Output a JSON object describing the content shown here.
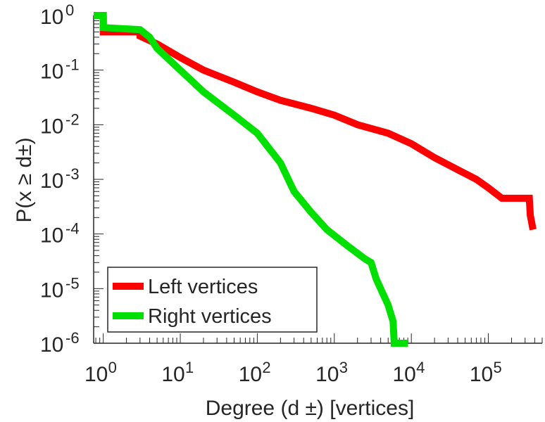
{
  "chart_data": {
    "type": "line",
    "title": "",
    "xlabel": "Degree (d ±) [vertices]",
    "ylabel": "P(x ≥ d±)",
    "xscale": "log",
    "yscale": "log",
    "xlim": [
      0.75,
      500000
    ],
    "ylim": [
      1e-06,
      1
    ],
    "grid": false,
    "legend_position": "bottom-left",
    "x_tick_labels": [
      {
        "base": "10",
        "exp": "0"
      },
      {
        "base": "10",
        "exp": "1"
      },
      {
        "base": "10",
        "exp": "2"
      },
      {
        "base": "10",
        "exp": "3"
      },
      {
        "base": "10",
        "exp": "4"
      },
      {
        "base": "10",
        "exp": "5"
      }
    ],
    "y_tick_labels": [
      {
        "base": "10",
        "exp": "0"
      },
      {
        "base": "10",
        "exp": "-1"
      },
      {
        "base": "10",
        "exp": "-2"
      },
      {
        "base": "10",
        "exp": "-3"
      },
      {
        "base": "10",
        "exp": "-4"
      },
      {
        "base": "10",
        "exp": "-5"
      },
      {
        "base": "10",
        "exp": "-6"
      }
    ],
    "series": [
      {
        "name": "Left vertices",
        "color": "#ff0000",
        "points": [
          [
            1,
            1
          ],
          [
            1,
            0.5
          ],
          [
            3,
            0.5
          ],
          [
            3,
            0.42
          ],
          [
            5,
            0.3
          ],
          [
            10,
            0.17
          ],
          [
            20,
            0.1
          ],
          [
            50,
            0.06
          ],
          [
            100,
            0.04
          ],
          [
            200,
            0.028
          ],
          [
            500,
            0.02
          ],
          [
            1000,
            0.015
          ],
          [
            2000,
            0.01
          ],
          [
            5000,
            0.007
          ],
          [
            10000,
            0.0045
          ],
          [
            20000,
            0.0025
          ],
          [
            40000,
            0.0015
          ],
          [
            70000,
            0.001
          ],
          [
            100000,
            0.0007
          ],
          [
            150000,
            0.00045
          ],
          [
            340000,
            0.00045
          ],
          [
            350000,
            0.00022
          ],
          [
            380000,
            0.00012
          ]
        ]
      },
      {
        "name": "Right vertices",
        "color": "#00e000",
        "points": [
          [
            0.75,
            1
          ],
          [
            1,
            1
          ],
          [
            1,
            0.6
          ],
          [
            3,
            0.55
          ],
          [
            4,
            0.4
          ],
          [
            5,
            0.25
          ],
          [
            10,
            0.1
          ],
          [
            20,
            0.04
          ],
          [
            50,
            0.015
          ],
          [
            100,
            0.007
          ],
          [
            200,
            0.002
          ],
          [
            300,
            0.0006
          ],
          [
            500,
            0.00025
          ],
          [
            800,
            0.00012
          ],
          [
            1500,
            6e-05
          ],
          [
            2500,
            3.5e-05
          ],
          [
            3000,
            3e-05
          ],
          [
            3500,
            1.5e-05
          ],
          [
            5000,
            5e-06
          ],
          [
            5800,
            2.5e-06
          ],
          [
            6000,
            1e-06
          ],
          [
            9000,
            1e-06
          ]
        ]
      }
    ]
  }
}
